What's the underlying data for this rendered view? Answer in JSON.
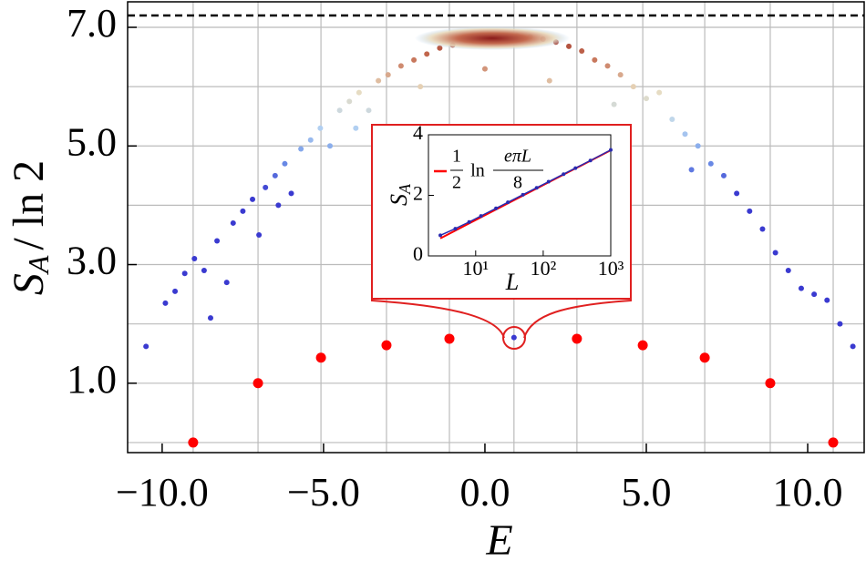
{
  "chart_data": {
    "type": "scatter",
    "xlabel": "E",
    "ylabel": {
      "symbol": "S",
      "sub": "A",
      "rest": "/ ln 2"
    },
    "xlim": [
      -11.07,
      11.75
    ],
    "ylim": [
      -0.17,
      7.43
    ],
    "xticks": [
      {
        "value": -10,
        "label": "−10.0"
      },
      {
        "value": -5,
        "label": "−5.0"
      },
      {
        "value": 0,
        "label": "0.0"
      },
      {
        "value": 5,
        "label": "5.0"
      },
      {
        "value": 10,
        "label": "10.0"
      }
    ],
    "yticks": [
      {
        "value": 1,
        "label": "1.0"
      },
      {
        "value": 3,
        "label": "3.0"
      },
      {
        "value": 5,
        "label": "5.0"
      },
      {
        "value": 7,
        "label": "7.0"
      }
    ],
    "xgrid": [
      -9.04,
      -7.03,
      -5.08,
      -3.05,
      -1.1,
      0.9,
      2.85,
      4.89,
      6.81,
      8.84,
      10.79
    ],
    "ygrid": [
      0,
      1,
      2,
      3,
      4,
      5,
      6,
      7
    ],
    "grid": true,
    "reference_line": 7.2,
    "colormap": [
      "#3a3ad0",
      "#6f95e8",
      "#b9d6f2",
      "#e9dcc0",
      "#c46a4f",
      "#8a1a1a"
    ],
    "series": [
      {
        "color": "#3a3ad0",
        "x": [
          -10.5,
          -9.9,
          -9.6,
          -9.3,
          -9.0,
          -8.7,
          -8.5,
          -8.3,
          -8.0,
          -7.8,
          -7.5,
          -7.2,
          -7.0,
          -6.8,
          -6.5,
          -6.2,
          -6.0,
          -5.7,
          -5.4,
          -5.1,
          -4.8,
          -4.5,
          -4.2,
          -3.9,
          -3.6,
          -3.3,
          -3.0,
          -2.6,
          -2.2,
          -1.8,
          -1.4,
          -1.0,
          -0.6,
          -0.2,
          0.2,
          0.6,
          1.0,
          1.4,
          1.8,
          2.2,
          2.6,
          3.0,
          3.4,
          3.8,
          4.2,
          4.6,
          5.0,
          5.4,
          5.8,
          6.2,
          6.6,
          7.0,
          7.4,
          7.8,
          8.2,
          8.6,
          9.0,
          9.4,
          9.8,
          10.2,
          10.6,
          11.0,
          11.4,
          -2.0,
          0.0,
          2.0,
          4.0,
          -4.0,
          -6.4,
          6.4
        ],
        "values": [
          1.62,
          2.35,
          2.55,
          2.85,
          3.1,
          2.9,
          2.1,
          3.4,
          2.7,
          3.7,
          3.9,
          4.1,
          3.5,
          4.3,
          4.5,
          4.7,
          4.2,
          4.95,
          5.1,
          5.3,
          5.0,
          5.6,
          5.75,
          5.9,
          5.6,
          6.1,
          6.2,
          6.35,
          6.45,
          6.55,
          6.65,
          6.7,
          6.78,
          6.82,
          6.85,
          6.86,
          6.86,
          6.84,
          6.8,
          6.75,
          6.68,
          6.6,
          6.45,
          6.35,
          6.2,
          6.0,
          5.8,
          5.9,
          5.45,
          5.2,
          5.0,
          4.7,
          4.5,
          4.2,
          3.9,
          3.6,
          3.2,
          2.9,
          2.6,
          2.5,
          2.4,
          2.0,
          1.62,
          6.0,
          6.3,
          6.1,
          5.7,
          5.3,
          4.0,
          4.6
        ]
      },
      {
        "color": "#ff0000",
        "x": [
          -9.04,
          -7.03,
          -5.08,
          -3.05,
          -1.1,
          2.85,
          4.89,
          6.81,
          8.84,
          10.79
        ],
        "values": [
          0.0,
          1.0,
          1.43,
          1.64,
          1.75,
          1.75,
          1.64,
          1.43,
          1.0,
          0.0
        ]
      }
    ],
    "highlight": {
      "x": 0.9,
      "value": 1.77,
      "color": "#3a3ad0"
    },
    "inset": {
      "type": "line",
      "xlabel": "L",
      "ylabel": {
        "symbol": "S",
        "sub": "A"
      },
      "log_x": true,
      "xlim": [
        2,
        1000
      ],
      "ylim": [
        0,
        4
      ],
      "xticks": [
        {
          "value": 10,
          "label": "10¹"
        },
        {
          "value": 100,
          "label": "10²"
        },
        {
          "value": 1000,
          "label": "10³"
        }
      ],
      "yticks": [
        0,
        2,
        4
      ],
      "legend": {
        "coef_num": "1",
        "coef_den": "2",
        "fn": "ln",
        "arg_num": "eπL",
        "arg_den": "8"
      },
      "series": [
        {
          "color": "#ff0000",
          "x": [
            3,
            1000
          ],
          "values": [
            0.58,
            3.49
          ]
        },
        {
          "color": "#2a2ab0",
          "x": [
            3,
            5,
            8,
            12,
            20,
            30,
            50,
            80,
            120,
            200,
            300,
            500,
            1000
          ],
          "values": [
            0.68,
            0.9,
            1.12,
            1.32,
            1.57,
            1.77,
            2.02,
            2.25,
            2.45,
            2.7,
            2.9,
            3.15,
            3.5
          ]
        }
      ]
    }
  }
}
